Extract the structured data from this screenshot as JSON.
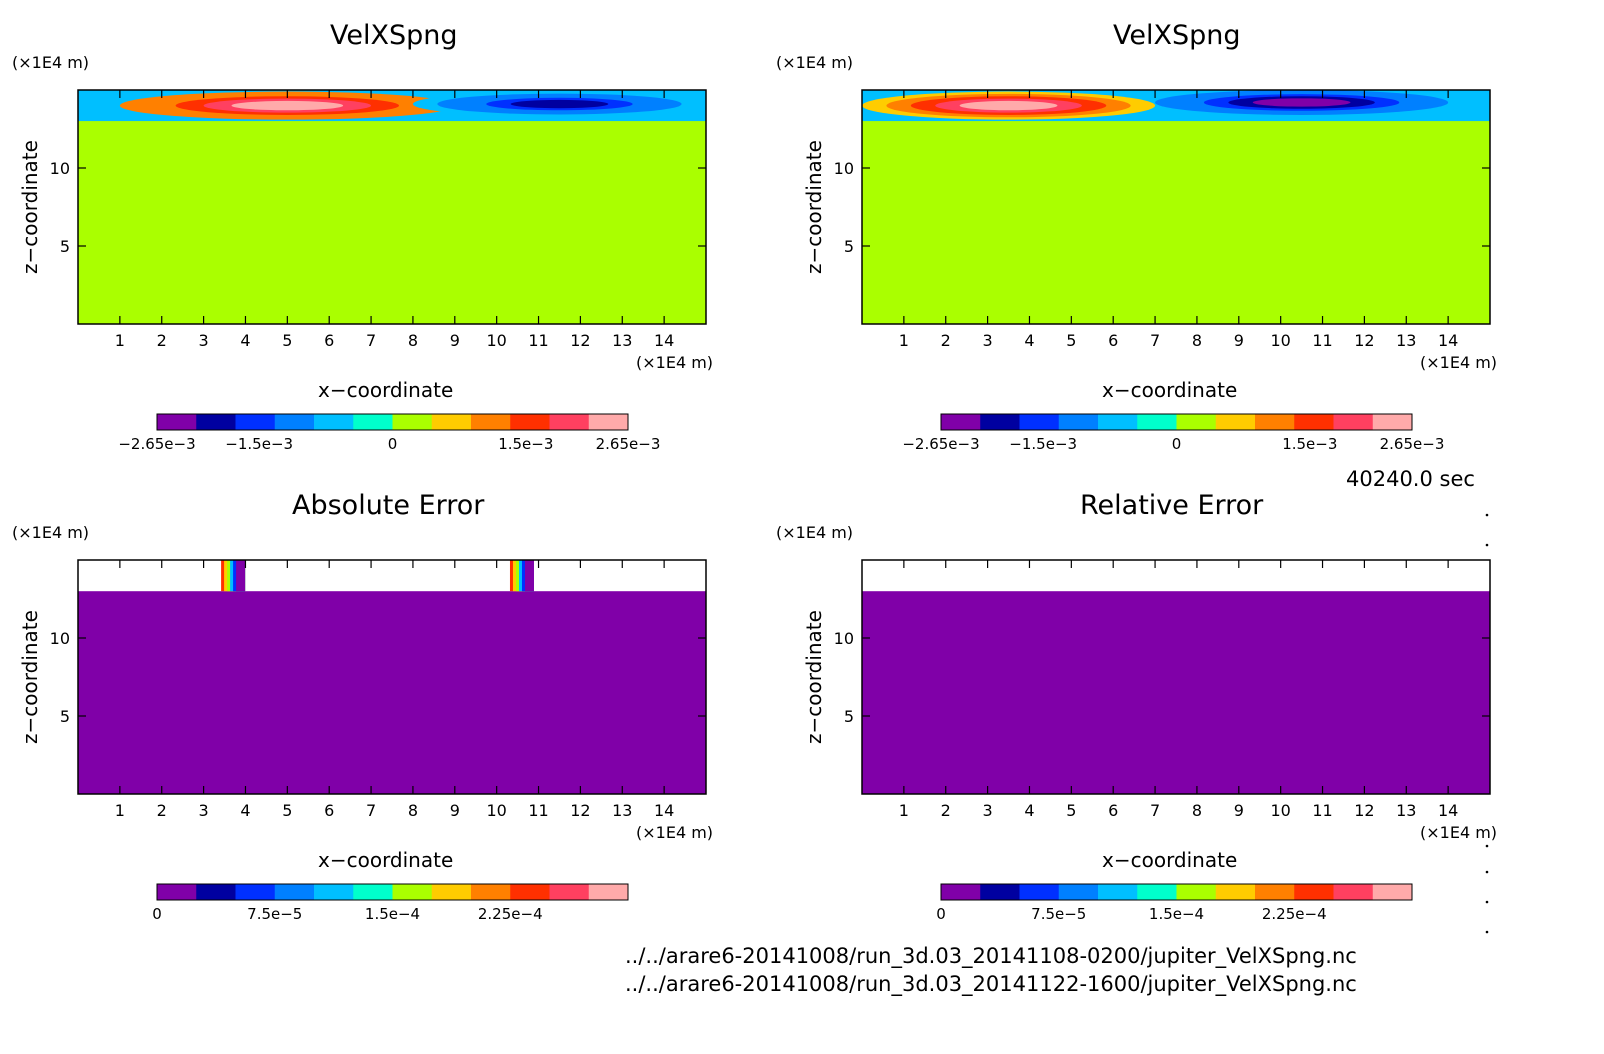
{
  "units": {
    "y": "(×1E4 m)",
    "x": "(×1E4 m)"
  },
  "time_label": "40240.0 sec",
  "file_paths": [
    "../../arare6-20141008/run_3d.03_20141108-0200/jupiter_VelXSpng.nc",
    "../../arare6-20141008/run_3d.03_20141122-1600/jupiter_VelXSpng.nc"
  ],
  "colors": {
    "background": "#ffffff",
    "field_zero": "#aaff00",
    "error_zero": "#8000a8"
  },
  "colormap": [
    "#8000a8",
    "#0000a0",
    "#0030ff",
    "#0080ff",
    "#00bfff",
    "#00ffcc",
    "#aaff00",
    "#ffcc00",
    "#ff8000",
    "#ff3000",
    "#ff4060",
    "#ffaaaa"
  ],
  "panels": [
    {
      "id": "velx-a",
      "title": "VelXSpng",
      "xlabel": "x−coordinate",
      "ylabel": "z−coordinate",
      "colorbar": {
        "labels": [
          "−2.65e−3",
          "−1.5e−3",
          "0",
          "1.5e−3",
          "2.65e−3"
        ],
        "range": [
          -0.00265,
          0.00265
        ]
      }
    },
    {
      "id": "velx-b",
      "title": "VelXSpng",
      "xlabel": "x−coordinate",
      "ylabel": "z−coordinate",
      "colorbar": {
        "labels": [
          "−2.65e−3",
          "−1.5e−3",
          "0",
          "1.5e−3",
          "2.65e−3"
        ],
        "range": [
          -0.00265,
          0.00265
        ]
      }
    },
    {
      "id": "abs-error",
      "title": "Absolute Error",
      "xlabel": "x−coordinate",
      "ylabel": "z−coordinate",
      "colorbar": {
        "labels": [
          "0",
          "7.5e−5",
          "1.5e−4",
          "2.25e−4"
        ],
        "range": [
          0,
          0.0003
        ]
      }
    },
    {
      "id": "rel-error",
      "title": "Relative Error",
      "xlabel": "x−coordinate",
      "ylabel": "z−coordinate",
      "colorbar": {
        "labels": [
          "0",
          "7.5e−5",
          "1.5e−4",
          "2.25e−4"
        ],
        "range": [
          0,
          0.0003
        ]
      }
    }
  ],
  "chart_data": [
    {
      "type": "heatmap",
      "title": "VelXSpng",
      "xlabel": "x−coordinate",
      "ylabel": "z−coordinate",
      "x_unit": "(×1E4 m)",
      "y_unit": "(×1E4 m)",
      "xlim": [
        0,
        15
      ],
      "ylim": [
        0,
        15
      ],
      "x_ticks": [
        1,
        2,
        3,
        4,
        5,
        6,
        7,
        8,
        9,
        10,
        11,
        12,
        13,
        14
      ],
      "y_ticks": [
        5,
        10
      ],
      "background_value": 0,
      "layer_z": [
        13.0,
        15.0
      ],
      "features": [
        {
          "x": 5.0,
          "z": 14.0,
          "rx": 4.0,
          "rz": 0.9,
          "value": 0.00265
        },
        {
          "x": 11.5,
          "z": 14.1,
          "rx": 3.5,
          "rz": 0.8,
          "value": -0.0022
        }
      ],
      "colorbar_range": [
        -0.00265,
        0.00265
      ]
    },
    {
      "type": "heatmap",
      "title": "VelXSpng",
      "xlabel": "x−coordinate",
      "ylabel": "z−coordinate",
      "x_unit": "(×1E4 m)",
      "y_unit": "(×1E4 m)",
      "xlim": [
        0,
        15
      ],
      "ylim": [
        0,
        15
      ],
      "x_ticks": [
        1,
        2,
        3,
        4,
        5,
        6,
        7,
        8,
        9,
        10,
        11,
        12,
        13,
        14
      ],
      "y_ticks": [
        5,
        10
      ],
      "background_value": 0,
      "layer_z": [
        13.0,
        15.0
      ],
      "features": [
        {
          "x": 3.5,
          "z": 14.0,
          "rx": 3.5,
          "rz": 0.9,
          "value": 0.0026
        },
        {
          "x": 10.5,
          "z": 14.2,
          "rx": 3.5,
          "rz": 0.8,
          "value": -0.0028
        }
      ],
      "colorbar_range": [
        -0.00265,
        0.00265
      ]
    },
    {
      "type": "heatmap",
      "title": "Absolute Error",
      "xlabel": "x−coordinate",
      "ylabel": "z−coordinate",
      "x_unit": "(×1E4 m)",
      "y_unit": "(×1E4 m)",
      "xlim": [
        0,
        15
      ],
      "ylim": [
        0,
        15
      ],
      "x_ticks": [
        1,
        2,
        3,
        4,
        5,
        6,
        7,
        8,
        9,
        10,
        11,
        12,
        13,
        14
      ],
      "y_ticks": [
        5,
        10
      ],
      "background_value": 0,
      "undefined_above_z": 13.0,
      "hotspots_x": [
        3.8,
        10.7
      ],
      "colorbar_range": [
        0,
        0.0003
      ]
    },
    {
      "type": "heatmap",
      "title": "Relative Error",
      "xlabel": "x−coordinate",
      "ylabel": "z−coordinate",
      "x_unit": "(×1E4 m)",
      "y_unit": "(×1E4 m)",
      "xlim": [
        0,
        15
      ],
      "ylim": [
        0,
        15
      ],
      "x_ticks": [
        1,
        2,
        3,
        4,
        5,
        6,
        7,
        8,
        9,
        10,
        11,
        12,
        13,
        14
      ],
      "y_ticks": [
        5,
        10
      ],
      "background_value": 0,
      "undefined_above_z": 13.0,
      "colorbar_range": [
        0,
        0.0003
      ]
    }
  ]
}
